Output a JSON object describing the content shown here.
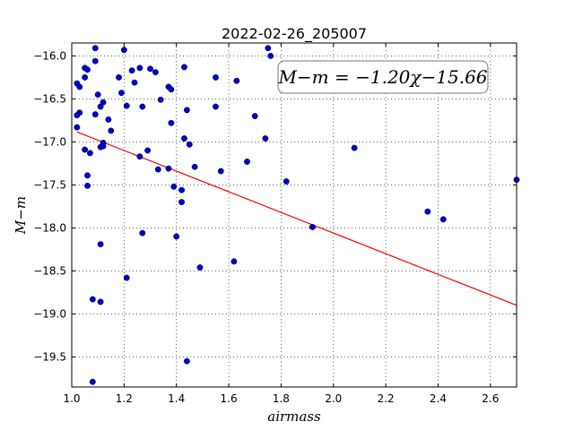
{
  "chart_data": {
    "type": "scatter",
    "title": "2022-02-26_205007",
    "xlabel": "airmass",
    "ylabel": "M−m",
    "xlim": [
      1.0,
      2.7
    ],
    "ylim": [
      -19.85,
      -15.85
    ],
    "xticks": [
      1.0,
      1.2,
      1.4,
      1.6,
      1.8,
      2.0,
      2.2,
      2.4,
      2.6
    ],
    "xtick_labels": [
      "1.0",
      "1.2",
      "1.4",
      "1.6",
      "1.8",
      "2.0",
      "2.2",
      "2.4",
      "2.6"
    ],
    "yticks": [
      -16.0,
      -16.5,
      -17.0,
      -17.5,
      -18.0,
      -18.5,
      -19.0,
      -19.5
    ],
    "ytick_labels": [
      "−16.0",
      "−16.5",
      "−17.0",
      "−17.5",
      "−18.0",
      "−18.5",
      "−19.0",
      "−19.5"
    ],
    "grid": true,
    "annotation": "M−m = −1.20χ−15.66",
    "fit": {
      "slope": -1.2,
      "intercept": -15.66,
      "x_range": [
        1.02,
        2.7
      ],
      "color": "#ff0000"
    },
    "point_color": "#0000cc",
    "points": [
      [
        1.09,
        -15.91
      ],
      [
        1.2,
        -15.93
      ],
      [
        1.75,
        -15.91
      ],
      [
        1.76,
        -16.0
      ],
      [
        1.09,
        -16.06
      ],
      [
        1.05,
        -16.14
      ],
      [
        1.06,
        -16.16
      ],
      [
        1.26,
        -16.14
      ],
      [
        1.3,
        -16.15
      ],
      [
        1.32,
        -16.19
      ],
      [
        1.23,
        -16.17
      ],
      [
        1.43,
        -16.13
      ],
      [
        1.05,
        -16.25
      ],
      [
        1.18,
        -16.25
      ],
      [
        1.55,
        -16.25
      ],
      [
        1.63,
        -16.29
      ],
      [
        1.02,
        -16.32
      ],
      [
        1.03,
        -16.36
      ],
      [
        1.24,
        -16.31
      ],
      [
        1.37,
        -16.36
      ],
      [
        1.38,
        -16.39
      ],
      [
        1.1,
        -16.45
      ],
      [
        1.19,
        -16.43
      ],
      [
        1.34,
        -16.51
      ],
      [
        1.12,
        -16.54
      ],
      [
        1.11,
        -16.59
      ],
      [
        1.21,
        -16.58
      ],
      [
        1.27,
        -16.59
      ],
      [
        1.55,
        -16.59
      ],
      [
        1.44,
        -16.63
      ],
      [
        1.03,
        -16.66
      ],
      [
        1.02,
        -16.69
      ],
      [
        1.09,
        -16.68
      ],
      [
        1.14,
        -16.74
      ],
      [
        1.7,
        -16.7
      ],
      [
        1.38,
        -16.78
      ],
      [
        1.02,
        -16.83
      ],
      [
        1.15,
        -16.87
      ],
      [
        1.43,
        -16.96
      ],
      [
        1.74,
        -16.96
      ],
      [
        1.45,
        -17.03
      ],
      [
        1.12,
        -17.01
      ],
      [
        1.11,
        -17.06
      ],
      [
        1.12,
        -17.05
      ],
      [
        1.05,
        -17.09
      ],
      [
        1.07,
        -17.13
      ],
      [
        1.29,
        -17.1
      ],
      [
        2.08,
        -17.07
      ],
      [
        1.26,
        -17.17
      ],
      [
        1.67,
        -17.23
      ],
      [
        1.33,
        -17.32
      ],
      [
        1.37,
        -17.31
      ],
      [
        1.47,
        -17.29
      ],
      [
        1.57,
        -17.34
      ],
      [
        1.06,
        -17.39
      ],
      [
        1.06,
        -17.51
      ],
      [
        1.39,
        -17.52
      ],
      [
        1.42,
        -17.56
      ],
      [
        1.82,
        -17.46
      ],
      [
        2.7,
        -17.44
      ],
      [
        1.42,
        -17.7
      ],
      [
        2.36,
        -17.81
      ],
      [
        2.42,
        -17.9
      ],
      [
        1.92,
        -17.99
      ],
      [
        1.27,
        -18.06
      ],
      [
        1.4,
        -18.1
      ],
      [
        1.11,
        -18.19
      ],
      [
        1.62,
        -18.39
      ],
      [
        1.49,
        -18.46
      ],
      [
        1.21,
        -18.58
      ],
      [
        1.08,
        -18.83
      ],
      [
        1.11,
        -18.86
      ],
      [
        1.44,
        -19.55
      ],
      [
        1.08,
        -19.79
      ]
    ]
  }
}
